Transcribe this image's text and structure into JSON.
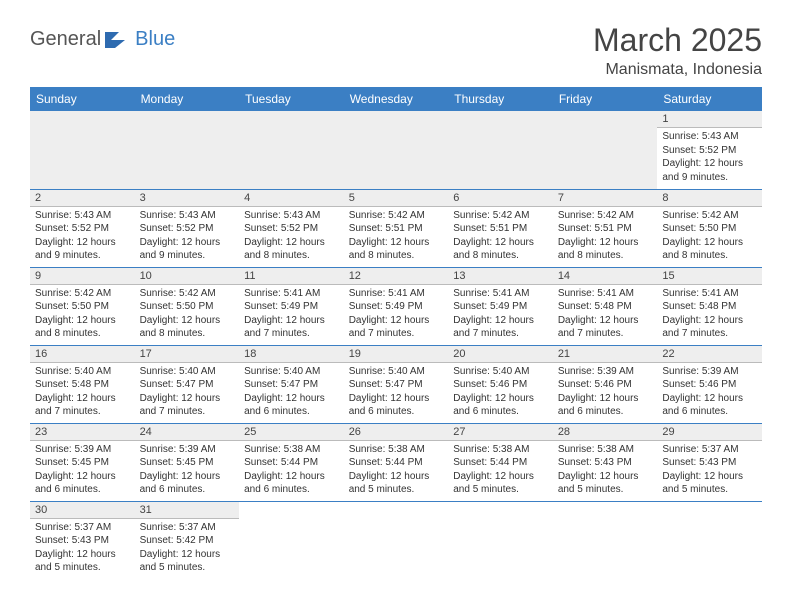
{
  "logo": {
    "text1": "General",
    "text2": "Blue"
  },
  "title": "March 2025",
  "location": "Manismata, Indonesia",
  "colors": {
    "header_bg": "#3b7fc4",
    "header_text": "#ffffff",
    "daynum_bg": "#eeeeee",
    "border": "#3b7fc4"
  },
  "weekdays": [
    "Sunday",
    "Monday",
    "Tuesday",
    "Wednesday",
    "Thursday",
    "Friday",
    "Saturday"
  ],
  "leading_blanks": 6,
  "days": [
    {
      "n": 1,
      "sr": "5:43 AM",
      "ss": "5:52 PM",
      "dl": "12 hours and 9 minutes."
    },
    {
      "n": 2,
      "sr": "5:43 AM",
      "ss": "5:52 PM",
      "dl": "12 hours and 9 minutes."
    },
    {
      "n": 3,
      "sr": "5:43 AM",
      "ss": "5:52 PM",
      "dl": "12 hours and 9 minutes."
    },
    {
      "n": 4,
      "sr": "5:43 AM",
      "ss": "5:52 PM",
      "dl": "12 hours and 8 minutes."
    },
    {
      "n": 5,
      "sr": "5:42 AM",
      "ss": "5:51 PM",
      "dl": "12 hours and 8 minutes."
    },
    {
      "n": 6,
      "sr": "5:42 AM",
      "ss": "5:51 PM",
      "dl": "12 hours and 8 minutes."
    },
    {
      "n": 7,
      "sr": "5:42 AM",
      "ss": "5:51 PM",
      "dl": "12 hours and 8 minutes."
    },
    {
      "n": 8,
      "sr": "5:42 AM",
      "ss": "5:50 PM",
      "dl": "12 hours and 8 minutes."
    },
    {
      "n": 9,
      "sr": "5:42 AM",
      "ss": "5:50 PM",
      "dl": "12 hours and 8 minutes."
    },
    {
      "n": 10,
      "sr": "5:42 AM",
      "ss": "5:50 PM",
      "dl": "12 hours and 8 minutes."
    },
    {
      "n": 11,
      "sr": "5:41 AM",
      "ss": "5:49 PM",
      "dl": "12 hours and 7 minutes."
    },
    {
      "n": 12,
      "sr": "5:41 AM",
      "ss": "5:49 PM",
      "dl": "12 hours and 7 minutes."
    },
    {
      "n": 13,
      "sr": "5:41 AM",
      "ss": "5:49 PM",
      "dl": "12 hours and 7 minutes."
    },
    {
      "n": 14,
      "sr": "5:41 AM",
      "ss": "5:48 PM",
      "dl": "12 hours and 7 minutes."
    },
    {
      "n": 15,
      "sr": "5:41 AM",
      "ss": "5:48 PM",
      "dl": "12 hours and 7 minutes."
    },
    {
      "n": 16,
      "sr": "5:40 AM",
      "ss": "5:48 PM",
      "dl": "12 hours and 7 minutes."
    },
    {
      "n": 17,
      "sr": "5:40 AM",
      "ss": "5:47 PM",
      "dl": "12 hours and 7 minutes."
    },
    {
      "n": 18,
      "sr": "5:40 AM",
      "ss": "5:47 PM",
      "dl": "12 hours and 6 minutes."
    },
    {
      "n": 19,
      "sr": "5:40 AM",
      "ss": "5:47 PM",
      "dl": "12 hours and 6 minutes."
    },
    {
      "n": 20,
      "sr": "5:40 AM",
      "ss": "5:46 PM",
      "dl": "12 hours and 6 minutes."
    },
    {
      "n": 21,
      "sr": "5:39 AM",
      "ss": "5:46 PM",
      "dl": "12 hours and 6 minutes."
    },
    {
      "n": 22,
      "sr": "5:39 AM",
      "ss": "5:46 PM",
      "dl": "12 hours and 6 minutes."
    },
    {
      "n": 23,
      "sr": "5:39 AM",
      "ss": "5:45 PM",
      "dl": "12 hours and 6 minutes."
    },
    {
      "n": 24,
      "sr": "5:39 AM",
      "ss": "5:45 PM",
      "dl": "12 hours and 6 minutes."
    },
    {
      "n": 25,
      "sr": "5:38 AM",
      "ss": "5:44 PM",
      "dl": "12 hours and 6 minutes."
    },
    {
      "n": 26,
      "sr": "5:38 AM",
      "ss": "5:44 PM",
      "dl": "12 hours and 5 minutes."
    },
    {
      "n": 27,
      "sr": "5:38 AM",
      "ss": "5:44 PM",
      "dl": "12 hours and 5 minutes."
    },
    {
      "n": 28,
      "sr": "5:38 AM",
      "ss": "5:43 PM",
      "dl": "12 hours and 5 minutes."
    },
    {
      "n": 29,
      "sr": "5:37 AM",
      "ss": "5:43 PM",
      "dl": "12 hours and 5 minutes."
    },
    {
      "n": 30,
      "sr": "5:37 AM",
      "ss": "5:43 PM",
      "dl": "12 hours and 5 minutes."
    },
    {
      "n": 31,
      "sr": "5:37 AM",
      "ss": "5:42 PM",
      "dl": "12 hours and 5 minutes."
    }
  ],
  "labels": {
    "sunrise": "Sunrise:",
    "sunset": "Sunset:",
    "daylight": "Daylight:"
  }
}
